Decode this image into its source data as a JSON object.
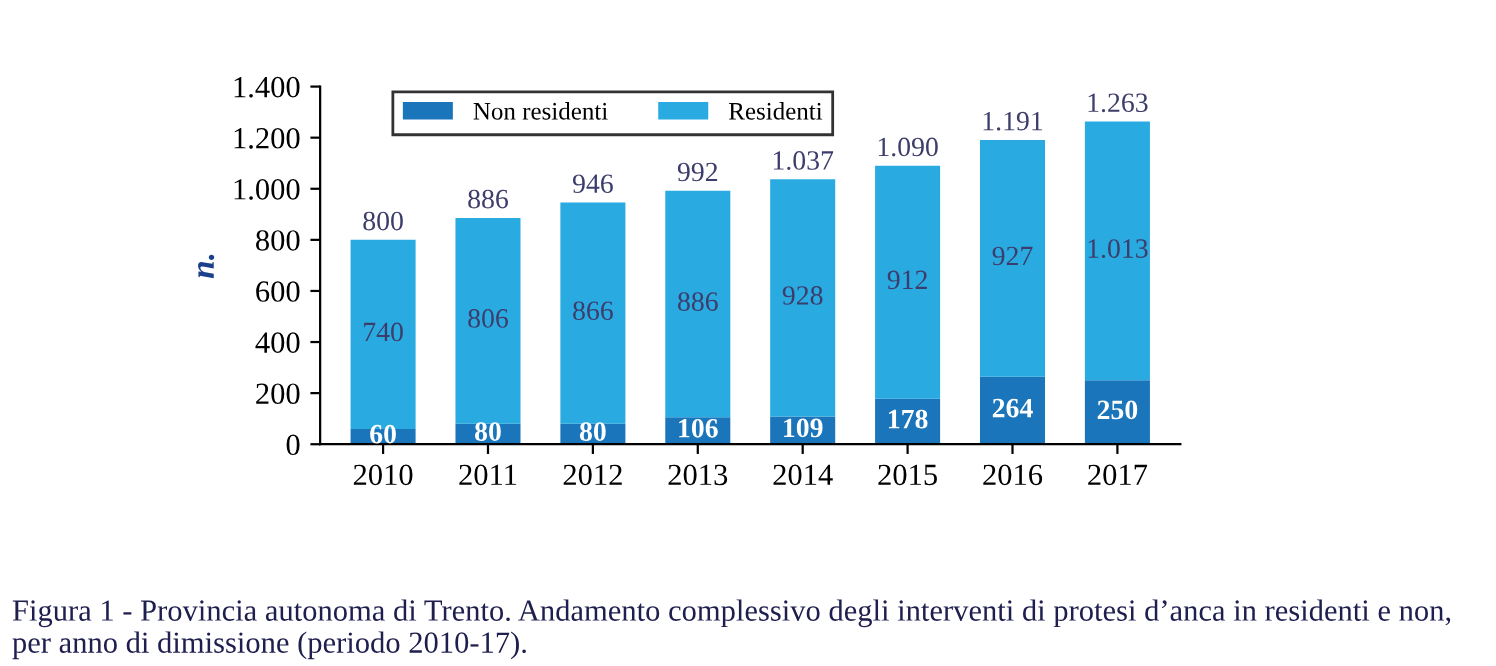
{
  "chart_data": {
    "type": "bar",
    "stacked": true,
    "ylabel": "n.",
    "categories": [
      "2010",
      "2011",
      "2012",
      "2013",
      "2014",
      "2015",
      "2016",
      "2017"
    ],
    "series": [
      {
        "name": "Non residenti",
        "color": "#1b75bb",
        "values": [
          60,
          80,
          80,
          106,
          109,
          178,
          264,
          250
        ],
        "value_labels": [
          "60",
          "80",
          "80",
          "106",
          "109",
          "178",
          "264",
          "250"
        ]
      },
      {
        "name": "Residenti",
        "color": "#29abe2",
        "values": [
          740,
          806,
          866,
          886,
          928,
          912,
          927,
          1013
        ],
        "value_labels": [
          "740",
          "806",
          "866",
          "886",
          "928",
          "912",
          "927",
          "1.013"
        ]
      }
    ],
    "totals": [
      "800",
      "886",
      "946",
      "992",
      "1.037",
      "1.090",
      "1.191",
      "1.263"
    ],
    "ylim": [
      0,
      1400
    ],
    "yticks": [
      0,
      200,
      400,
      600,
      800,
      {
        "value": 1000,
        "label": "1.000"
      },
      {
        "value": 1200,
        "label": "1.200"
      },
      {
        "value": 1400,
        "label": "1.400"
      }
    ],
    "grid": false,
    "legend": "top left",
    "annotations": [
      "Figura 1 - Provincia autonoma di Trento. Andamento complessivo degli interventi di protesi d’anca in residenti e non, per anno di dimissione (periodo 2010-17)."
    ]
  }
}
